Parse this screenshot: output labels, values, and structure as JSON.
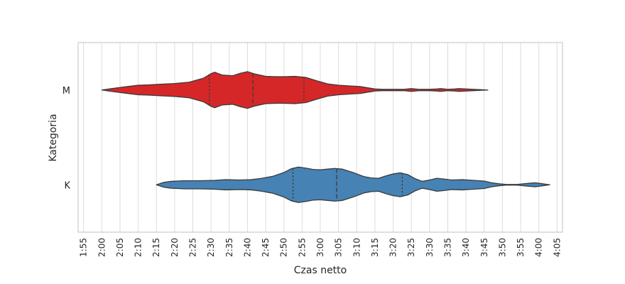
{
  "chart_data": {
    "type": "violin",
    "xlabel": "Czas netto",
    "ylabel": "Kategoria",
    "x_ticks": [
      "1:55",
      "2:00",
      "2:05",
      "2:10",
      "2:15",
      "2:20",
      "2:25",
      "2:30",
      "2:35",
      "2:40",
      "2:45",
      "2:50",
      "2:55",
      "3:00",
      "3:05",
      "3:10",
      "3:15",
      "3:20",
      "3:25",
      "3:30",
      "3:35",
      "3:40",
      "3:45",
      "3:50",
      "3:55",
      "4:00",
      "4:05"
    ],
    "x_range_minutes": [
      113.5,
      246.5
    ],
    "grid": "vertical",
    "series": [
      {
        "name": "M",
        "color": "#d62728",
        "quartiles_minutes": [
          149.5,
          161.5,
          175.5
        ],
        "density": [
          [
            120,
            0
          ],
          [
            122,
            0.03
          ],
          [
            124,
            0.06
          ],
          [
            127,
            0.1
          ],
          [
            130,
            0.14
          ],
          [
            133,
            0.15
          ],
          [
            136,
            0.17
          ],
          [
            140,
            0.19
          ],
          [
            144,
            0.23
          ],
          [
            148,
            0.35
          ],
          [
            150,
            0.48
          ],
          [
            151,
            0.52
          ],
          [
            153,
            0.44
          ],
          [
            156,
            0.42
          ],
          [
            158,
            0.49
          ],
          [
            160,
            0.54
          ],
          [
            162,
            0.47
          ],
          [
            165,
            0.4
          ],
          [
            168,
            0.39
          ],
          [
            170,
            0.39
          ],
          [
            173,
            0.4
          ],
          [
            176,
            0.37
          ],
          [
            179,
            0.27
          ],
          [
            182,
            0.18
          ],
          [
            185,
            0.14
          ],
          [
            188,
            0.12
          ],
          [
            191,
            0.1
          ],
          [
            195,
            0.03
          ],
          [
            197,
            0.02
          ],
          [
            200,
            0.02
          ],
          [
            203,
            0.02
          ],
          [
            205,
            0.04
          ],
          [
            207,
            0.02
          ],
          [
            210,
            0.02
          ],
          [
            212,
            0.03
          ],
          [
            213,
            0.04
          ],
          [
            215,
            0.02
          ],
          [
            217,
            0.03
          ],
          [
            218,
            0.04
          ],
          [
            220,
            0.03
          ],
          [
            222,
            0.02
          ],
          [
            224,
            0.01
          ],
          [
            226,
            0
          ]
        ]
      },
      {
        "name": "K",
        "color": "#4682b4",
        "quartiles_minutes": [
          172.5,
          184.5,
          202.5
        ],
        "density": [
          [
            135,
            0
          ],
          [
            137,
            0.07
          ],
          [
            139,
            0.1
          ],
          [
            143,
            0.12
          ],
          [
            147,
            0.12
          ],
          [
            151,
            0.13
          ],
          [
            154,
            0.15
          ],
          [
            158,
            0.14
          ],
          [
            161,
            0.15
          ],
          [
            164,
            0.19
          ],
          [
            167,
            0.25
          ],
          [
            170,
            0.36
          ],
          [
            172,
            0.47
          ],
          [
            174,
            0.52
          ],
          [
            176,
            0.49
          ],
          [
            178,
            0.45
          ],
          [
            180,
            0.44
          ],
          [
            182,
            0.46
          ],
          [
            184,
            0.48
          ],
          [
            186,
            0.46
          ],
          [
            189,
            0.36
          ],
          [
            192,
            0.24
          ],
          [
            194,
            0.2
          ],
          [
            196,
            0.19
          ],
          [
            198,
            0.26
          ],
          [
            200,
            0.32
          ],
          [
            202,
            0.35
          ],
          [
            204,
            0.3
          ],
          [
            206,
            0.18
          ],
          [
            208,
            0.1
          ],
          [
            210,
            0.14
          ],
          [
            212,
            0.19
          ],
          [
            214,
            0.17
          ],
          [
            216,
            0.14
          ],
          [
            219,
            0.15
          ],
          [
            222,
            0.13
          ],
          [
            225,
            0.11
          ],
          [
            227,
            0.06
          ],
          [
            229,
            0.03
          ],
          [
            231,
            0.01
          ],
          [
            234,
            0.01
          ],
          [
            237,
            0.04
          ],
          [
            239,
            0.06
          ],
          [
            241,
            0.03
          ],
          [
            243,
            0
          ]
        ]
      }
    ]
  }
}
